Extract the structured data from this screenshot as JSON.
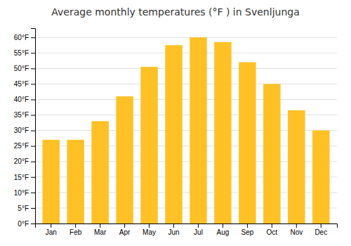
{
  "chart_data": {
    "type": "bar",
    "title": "Average monthly temperatures (°F ) in Svenljunga",
    "categories": [
      "Jan",
      "Feb",
      "Mar",
      "Apr",
      "May",
      "Jun",
      "Jul",
      "Aug",
      "Sep",
      "Oct",
      "Nov",
      "Dec"
    ],
    "values": [
      27,
      27,
      33,
      41,
      50.5,
      57.5,
      60,
      58.5,
      52,
      45,
      36.5,
      30
    ],
    "color": "#FFC125",
    "ylim": [
      0,
      63
    ],
    "yticks": [
      {
        "value": 0,
        "label": "0°F"
      },
      {
        "value": 5,
        "label": "5°F"
      },
      {
        "value": 10,
        "label": "10°F"
      },
      {
        "value": 15,
        "label": "15°F"
      },
      {
        "value": 20,
        "label": "20°F"
      },
      {
        "value": 25,
        "label": "25°F"
      },
      {
        "value": 30,
        "label": "30°F"
      },
      {
        "value": 35,
        "label": "35°F"
      },
      {
        "value": 40,
        "label": "40°F"
      },
      {
        "value": 45,
        "label": "45°F"
      },
      {
        "value": 50,
        "label": "50°F"
      },
      {
        "value": 55,
        "label": "55°F"
      },
      {
        "value": 60,
        "label": "60°F"
      }
    ],
    "grid": true
  }
}
